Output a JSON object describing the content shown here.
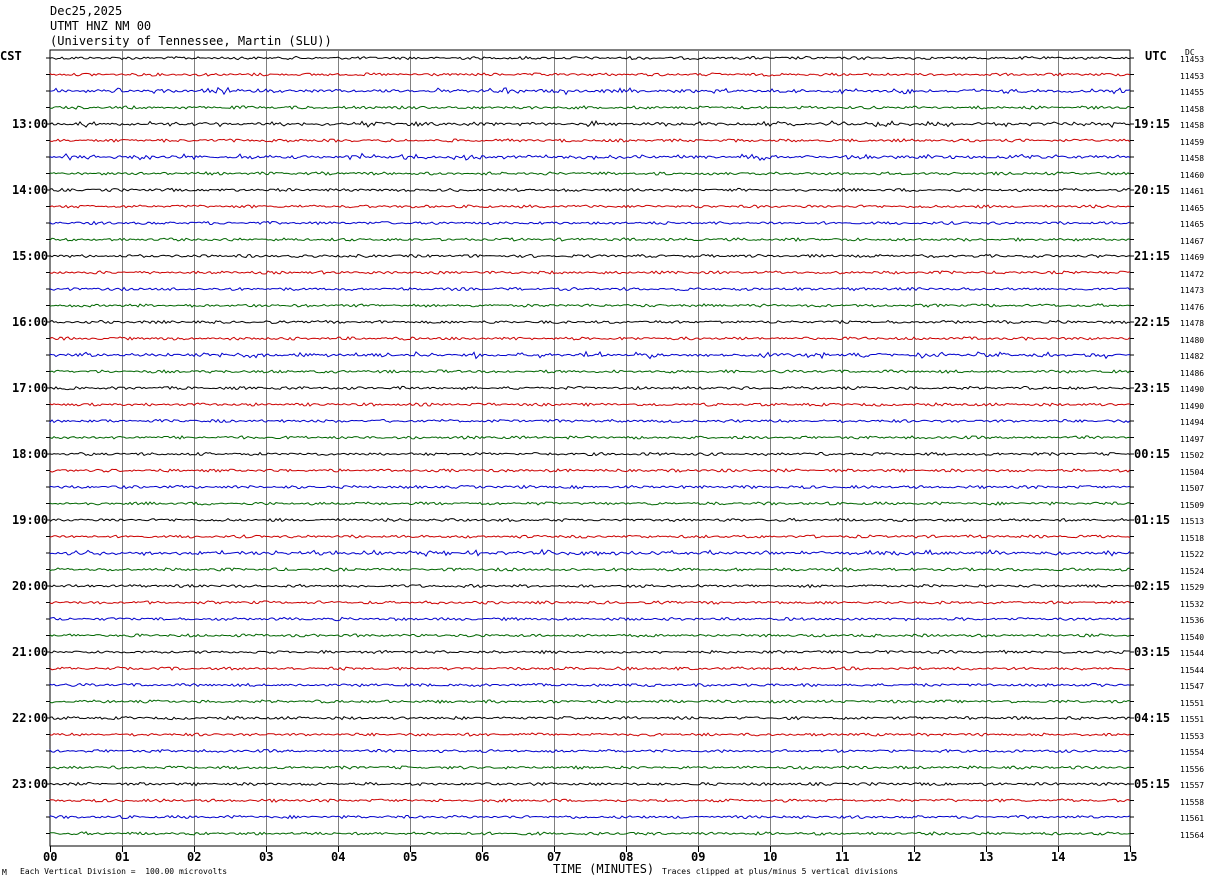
{
  "header": {
    "date": "Dec25,2025",
    "station": "UTMT HNZ NM 00",
    "network": "(University of Tennessee, Martin (SLU))"
  },
  "left_tz": "CST",
  "right_tz": "UTC",
  "dc_label": "DC",
  "footer": {
    "scale": "Each Vertical Division =  100.00 microvolts",
    "clip": "Traces clipped at plus/minus 5 vertical divisions",
    "corner": "M"
  },
  "colors": {
    "black": "#000000",
    "red": "#cc0000",
    "blue": "#0000cc",
    "green": "#006600",
    "grid": "#808080"
  },
  "chart_data": {
    "type": "line",
    "title": "",
    "xlabel": "TIME (MINUTES)",
    "xlim": [
      0,
      15
    ],
    "xticks": [
      "00",
      "01",
      "02",
      "03",
      "04",
      "05",
      "06",
      "07",
      "08",
      "09",
      "10",
      "11",
      "12",
      "13",
      "14",
      "15"
    ],
    "left_labels": [
      "13:00",
      "14:00",
      "15:00",
      "16:00",
      "17:00",
      "18:00",
      "19:00",
      "20:00",
      "21:00",
      "22:00",
      "23:00"
    ],
    "right_labels": [
      "19:15",
      "20:15",
      "21:15",
      "22:15",
      "23:15",
      "00:15",
      "01:15",
      "02:15",
      "03:15",
      "04:15",
      "05:15"
    ],
    "trace_colors": [
      "black",
      "red",
      "blue",
      "green"
    ],
    "dc_values": [
      "11453",
      "11453",
      "11455",
      "11458",
      "11458",
      "11459",
      "11458",
      "11460",
      "11461",
      "11465",
      "11465",
      "11467",
      "11469",
      "11472",
      "11473",
      "11476",
      "11478",
      "11480",
      "11482",
      "11486",
      "11490",
      "11490",
      "11494",
      "11497",
      "11502",
      "11504",
      "11507",
      "11509",
      "11513",
      "11518",
      "11522",
      "11524",
      "11529",
      "11532",
      "11536",
      "11540",
      "11544",
      "11544",
      "11547",
      "11551",
      "11551",
      "11553",
      "11554",
      "11556",
      "11557",
      "11558",
      "11561",
      "11564"
    ],
    "noisy_traces": [
      2,
      4,
      6,
      18,
      30
    ]
  }
}
